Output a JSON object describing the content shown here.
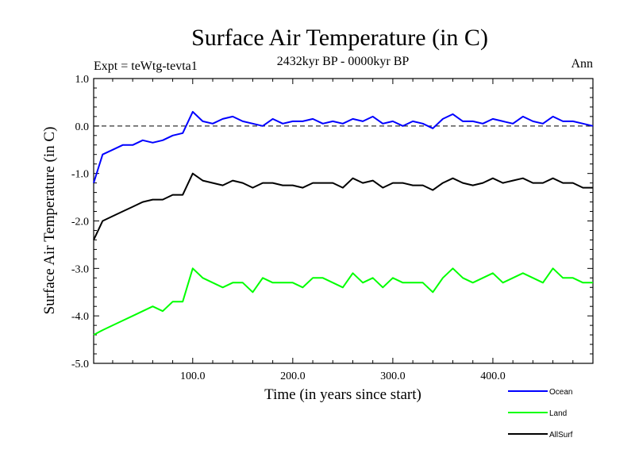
{
  "chart_data": {
    "type": "line",
    "title": "Surface Air Temperature (in C)",
    "subtitle": "2432kyr BP - 0000kyr BP",
    "expt_label": "Expt = teWtg-tevta1",
    "season_label": "Ann",
    "xlabel": "Time (in years since start)",
    "ylabel": "Surface Air Temperature (in C)",
    "xlim": [
      1,
      500
    ],
    "ylim": [
      -5.0,
      1.0
    ],
    "x_ticks": [
      100,
      200,
      300,
      400
    ],
    "x_tick_labels": [
      "100.0",
      "200.0",
      "300.0",
      "400.0"
    ],
    "y_ticks": [
      1.0,
      0.0,
      -1.0,
      -2.0,
      -3.0,
      -4.0,
      -5.0
    ],
    "y_tick_labels": [
      "1.0",
      "0.0",
      "-1.0",
      "-2.0",
      "-3.0",
      "-4.0",
      "-5.0"
    ],
    "reference_line": 0.0,
    "x": [
      1,
      10,
      20,
      30,
      40,
      50,
      60,
      70,
      80,
      90,
      100,
      110,
      120,
      130,
      140,
      150,
      160,
      170,
      180,
      190,
      200,
      210,
      220,
      230,
      240,
      250,
      260,
      270,
      280,
      290,
      300,
      310,
      320,
      330,
      340,
      350,
      360,
      370,
      380,
      390,
      400,
      410,
      420,
      430,
      440,
      450,
      460,
      470,
      480,
      490,
      500
    ],
    "series": [
      {
        "name": "Ocean",
        "color": "#0000ff",
        "values": [
          -1.2,
          -0.6,
          -0.5,
          -0.4,
          -0.4,
          -0.3,
          -0.35,
          -0.3,
          -0.2,
          -0.15,
          0.3,
          0.1,
          0.05,
          0.15,
          0.2,
          0.1,
          0.05,
          0.0,
          0.15,
          0.05,
          0.1,
          0.1,
          0.15,
          0.05,
          0.1,
          0.05,
          0.15,
          0.1,
          0.2,
          0.05,
          0.1,
          0.0,
          0.1,
          0.05,
          -0.05,
          0.15,
          0.25,
          0.1,
          0.1,
          0.05,
          0.15,
          0.1,
          0.05,
          0.2,
          0.1,
          0.05,
          0.2,
          0.1,
          0.1,
          0.05,
          0.0
        ]
      },
      {
        "name": "Land",
        "color": "#00ff00",
        "values": [
          -4.4,
          -4.3,
          -4.2,
          -4.1,
          -4.0,
          -3.9,
          -3.8,
          -3.9,
          -3.7,
          -3.7,
          -3.0,
          -3.2,
          -3.3,
          -3.4,
          -3.3,
          -3.3,
          -3.5,
          -3.2,
          -3.3,
          -3.3,
          -3.3,
          -3.4,
          -3.2,
          -3.2,
          -3.3,
          -3.4,
          -3.1,
          -3.3,
          -3.2,
          -3.4,
          -3.2,
          -3.3,
          -3.3,
          -3.3,
          -3.5,
          -3.2,
          -3.0,
          -3.2,
          -3.3,
          -3.2,
          -3.1,
          -3.3,
          -3.2,
          -3.1,
          -3.2,
          -3.3,
          -3.0,
          -3.2,
          -3.2,
          -3.3,
          -3.3
        ]
      },
      {
        "name": "AllSurf",
        "color": "#000000",
        "values": [
          -2.4,
          -2.0,
          -1.9,
          -1.8,
          -1.7,
          -1.6,
          -1.55,
          -1.55,
          -1.45,
          -1.45,
          -1.0,
          -1.15,
          -1.2,
          -1.25,
          -1.15,
          -1.2,
          -1.3,
          -1.2,
          -1.2,
          -1.25,
          -1.25,
          -1.3,
          -1.2,
          -1.2,
          -1.2,
          -1.3,
          -1.1,
          -1.2,
          -1.15,
          -1.3,
          -1.2,
          -1.2,
          -1.25,
          -1.25,
          -1.35,
          -1.2,
          -1.1,
          -1.2,
          -1.25,
          -1.2,
          -1.1,
          -1.2,
          -1.15,
          -1.1,
          -1.2,
          -1.2,
          -1.1,
          -1.2,
          -1.2,
          -1.3,
          -1.3
        ]
      }
    ],
    "legend_placement": "bottom-right"
  }
}
